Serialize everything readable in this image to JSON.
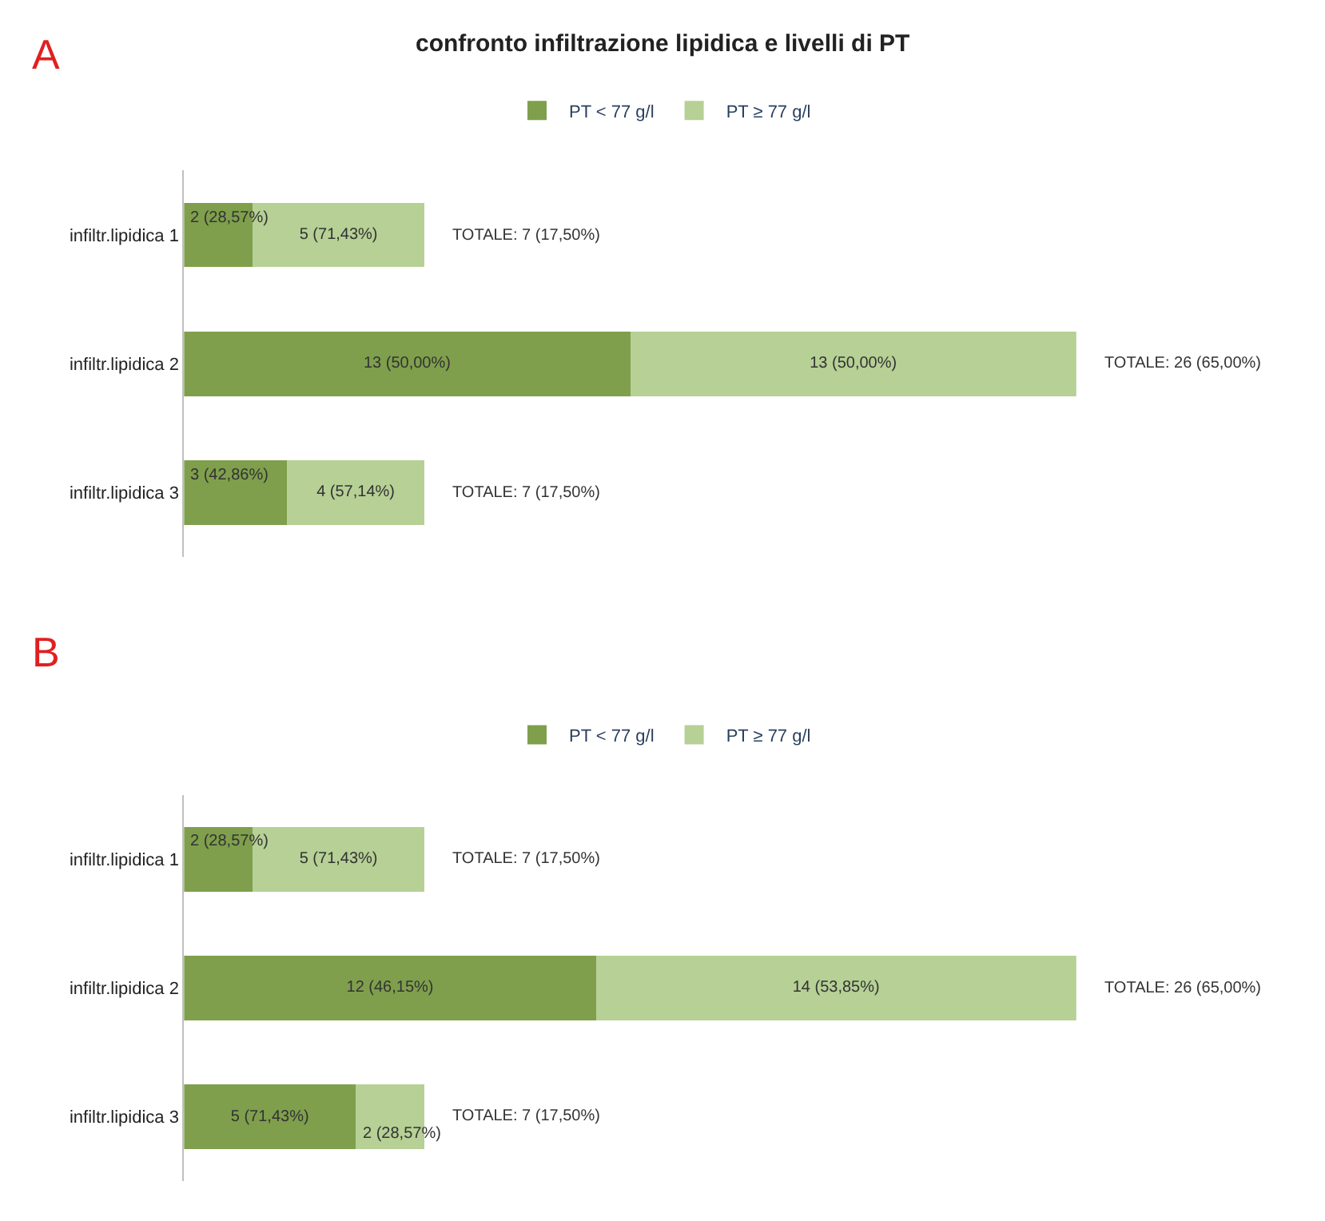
{
  "chart_data": [
    {
      "type": "bar",
      "orientation": "horizontal",
      "stacked": true,
      "title": "confronto infiltrazione lipidica e livelli di PT",
      "annotations": [
        "A"
      ],
      "categories": [
        "infiltr.lipidica 1",
        "infiltr.lipidica 2",
        "infiltr.lipidica 3"
      ],
      "series": [
        {
          "name": "PT < 77 g/l",
          "color": "#7f9f4c",
          "values": [
            2,
            13,
            3
          ],
          "value_labels": [
            "2 (28,57%)",
            "13 (50,00%)",
            "3 (42,86%)"
          ]
        },
        {
          "name": "PT ≥ 77 g/l",
          "color": "#b6d095",
          "values": [
            5,
            13,
            4
          ],
          "value_labels": [
            "5 (71,43%)",
            "13 (50,00%)",
            "4 (57,14%)"
          ]
        }
      ],
      "totals": [
        "TOTALE: 7 (17,50%)",
        "TOTALE: 26 (65,00%)",
        "TOTALE: 7 (17,50%)"
      ],
      "legend": "top",
      "tick_labels": "y"
    },
    {
      "type": "bar",
      "orientation": "horizontal",
      "stacked": true,
      "annotations": [
        "B"
      ],
      "categories": [
        "infiltr.lipidica 1",
        "infiltr.lipidica 2",
        "infiltr.lipidica 3"
      ],
      "series": [
        {
          "name": "PT < 77 g/l",
          "color": "#7f9f4c",
          "values": [
            2,
            12,
            5
          ],
          "value_labels": [
            "2 (28,57%)",
            "12 (46,15%)",
            "5 (71,43%)"
          ]
        },
        {
          "name": "PT ≥ 77 g/l",
          "color": "#b6d095",
          "values": [
            5,
            14,
            2
          ],
          "value_labels": [
            "5 (71,43%)",
            "14 (53,85%)",
            "2 (28,57%)"
          ]
        }
      ],
      "totals": [
        "TOTALE: 7 (17,50%)",
        "TOTALE: 26 (65,00%)",
        "TOTALE: 7 (17,50%)"
      ],
      "legend": "top",
      "tick_labels": "y"
    }
  ]
}
